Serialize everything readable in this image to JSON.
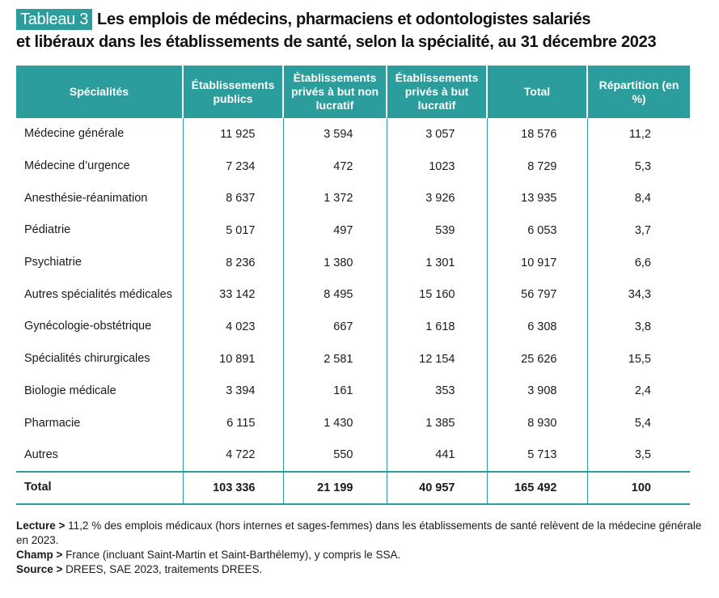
{
  "title": {
    "badge": "Tableau 3",
    "line1": "Les emplois de médecins, pharmaciens et odontologistes salariés",
    "line2": "et libéraux dans les établissements de santé, selon la spécialité, au 31 décembre 2023"
  },
  "colors": {
    "accent": "#2a9d9c"
  },
  "table": {
    "headers": [
      "Spécialités",
      "Établissements publics",
      "Établissements privés à but non lucratif",
      "Établissements privés à but lucratif",
      "Total",
      "Répartition (en %)"
    ],
    "rows": [
      [
        "Médecine générale",
        "11 925",
        "3 594",
        "3 057",
        "18 576",
        "11,2"
      ],
      [
        "Médecine d’urgence",
        "7 234",
        "472",
        "1023",
        "8 729",
        "5,3"
      ],
      [
        "Anesthésie-réanimation",
        "8 637",
        "1 372",
        "3 926",
        "13 935",
        "8,4"
      ],
      [
        "Pédiatrie",
        "5 017",
        "497",
        "539",
        "6 053",
        "3,7"
      ],
      [
        "Psychiatrie",
        "8 236",
        "1 380",
        "1 301",
        "10 917",
        "6,6"
      ],
      [
        "Autres spécialités médicales",
        "33 142",
        "8 495",
        "15 160",
        "56 797",
        "34,3"
      ],
      [
        "Gynécologie-obstétrique",
        "4 023",
        "667",
        "1 618",
        "6 308",
        "3,8"
      ],
      [
        "Spécialités chirurgicales",
        "10 891",
        "2 581",
        "12 154",
        "25 626",
        "15,5"
      ],
      [
        "Biologie médicale",
        "3 394",
        "161",
        "353",
        "3 908",
        "2,4"
      ],
      [
        "Pharmacie",
        "6 115",
        "1 430",
        "1 385",
        "8 930",
        "5,4"
      ],
      [
        "Autres",
        "4 722",
        "550",
        "441",
        "5 713",
        "3,5"
      ]
    ],
    "total": [
      "Total",
      "103 336",
      "21 199",
      "40 957",
      "165 492",
      "100"
    ]
  },
  "notes": {
    "lecture_label": "Lecture >",
    "lecture_text": "11,2 % des emplois médicaux (hors internes et sages-femmes) dans les établissements de santé relèvent de la médecine générale en 2023.",
    "champ_label": "Champ >",
    "champ_text": "France (incluant Saint-Martin et Saint-Barthélemy), y compris le SSA.",
    "source_label": "Source >",
    "source_text": "DREES, SAE 2023, traitements DREES."
  }
}
